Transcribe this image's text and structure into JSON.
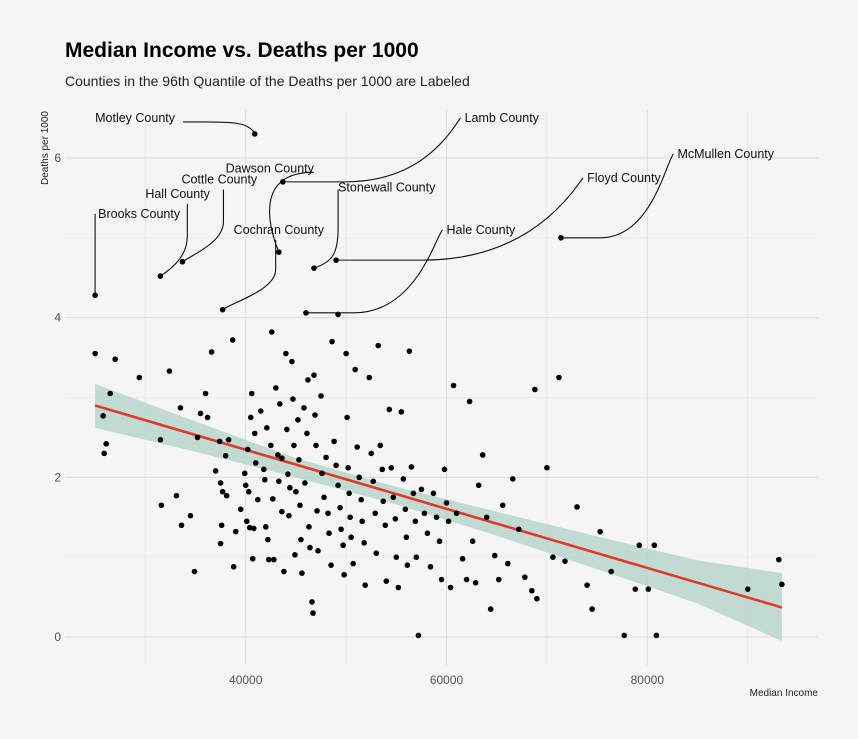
{
  "chart_data": {
    "type": "scatter",
    "title": "Median Income vs. Deaths per 1000",
    "subtitle": "Counties in the 96th Quantile of the Deaths per 1000 are Labeled",
    "xlabel": "Median Income",
    "ylabel": "Deaths per 1000",
    "xlim": [
      22000,
      97000
    ],
    "ylim": [
      -0.35,
      6.6
    ],
    "x_ticks": [
      40000,
      60000,
      80000
    ],
    "y_ticks": [
      0,
      2,
      4,
      6
    ],
    "grid": true,
    "colors": {
      "points": "#000000",
      "fit_line": "#e03a2a",
      "band": "#b7d6cc",
      "background": "#f5f5f5"
    },
    "points": [
      [
        25000,
        3.55
      ],
      [
        25800,
        2.77
      ],
      [
        26100,
        2.42
      ],
      [
        26500,
        3.05
      ],
      [
        27000,
        3.48
      ],
      [
        25900,
        2.3
      ],
      [
        29400,
        3.25
      ],
      [
        31500,
        2.47
      ],
      [
        31600,
        1.65
      ],
      [
        32400,
        3.33
      ],
      [
        33100,
        1.77
      ],
      [
        33600,
        1.4
      ],
      [
        33500,
        2.87
      ],
      [
        34500,
        1.52
      ],
      [
        34900,
        0.82
      ],
      [
        35200,
        2.5
      ],
      [
        35500,
        2.8
      ],
      [
        36200,
        2.75
      ],
      [
        36000,
        3.05
      ],
      [
        36600,
        3.57
      ],
      [
        37000,
        2.08
      ],
      [
        37400,
        2.45
      ],
      [
        37500,
        1.93
      ],
      [
        37700,
        1.82
      ],
      [
        37600,
        1.4
      ],
      [
        37500,
        1.17
      ],
      [
        38000,
        2.27
      ],
      [
        38300,
        2.47
      ],
      [
        38100,
        1.77
      ],
      [
        38700,
        3.72
      ],
      [
        39000,
        1.32
      ],
      [
        38800,
        0.88
      ],
      [
        39500,
        1.6
      ],
      [
        39900,
        2.05
      ],
      [
        40200,
        2.35
      ],
      [
        40000,
        1.9
      ],
      [
        40300,
        1.82
      ],
      [
        40100,
        1.45
      ],
      [
        40400,
        1.37
      ],
      [
        40600,
        3.05
      ],
      [
        40500,
        2.75
      ],
      [
        40900,
        2.55
      ],
      [
        41000,
        2.18
      ],
      [
        41200,
        1.72
      ],
      [
        40800,
        1.36
      ],
      [
        40700,
        0.98
      ],
      [
        41500,
        2.83
      ],
      [
        41800,
        2.1
      ],
      [
        41900,
        1.97
      ],
      [
        42100,
        2.62
      ],
      [
        42000,
        1.38
      ],
      [
        42300,
        0.97
      ],
      [
        42200,
        1.22
      ],
      [
        42600,
        3.82
      ],
      [
        42500,
        2.4
      ],
      [
        42700,
        1.73
      ],
      [
        42800,
        0.97
      ],
      [
        43000,
        3.12
      ],
      [
        43200,
        2.28
      ],
      [
        43300,
        1.95
      ],
      [
        43400,
        2.92
      ],
      [
        43600,
        2.24
      ],
      [
        43600,
        1.57
      ],
      [
        43800,
        0.82
      ],
      [
        44000,
        3.55
      ],
      [
        44100,
        2.6
      ],
      [
        44200,
        2.04
      ],
      [
        44300,
        1.52
      ],
      [
        44400,
        1.87
      ],
      [
        44600,
        3.45
      ],
      [
        44700,
        2.98
      ],
      [
        44800,
        2.4
      ],
      [
        44900,
        1.03
      ],
      [
        45000,
        1.82
      ],
      [
        45200,
        2.72
      ],
      [
        45300,
        2.22
      ],
      [
        45400,
        1.65
      ],
      [
        45500,
        1.22
      ],
      [
        45600,
        0.8
      ],
      [
        45800,
        2.87
      ],
      [
        45900,
        1.93
      ],
      [
        46200,
        3.22
      ],
      [
        46100,
        2.55
      ],
      [
        46300,
        1.38
      ],
      [
        46400,
        1.12
      ],
      [
        46600,
        0.44
      ],
      [
        46700,
        0.3
      ],
      [
        46800,
        3.28
      ],
      [
        46900,
        2.78
      ],
      [
        47000,
        2.4
      ],
      [
        47100,
        1.58
      ],
      [
        47200,
        1.08
      ],
      [
        47500,
        3.02
      ],
      [
        47600,
        2.05
      ],
      [
        47800,
        1.75
      ],
      [
        48000,
        2.25
      ],
      [
        48200,
        1.55
      ],
      [
        48300,
        1.3
      ],
      [
        48500,
        0.9
      ],
      [
        48600,
        3.7
      ],
      [
        48800,
        2.45
      ],
      [
        49000,
        2.15
      ],
      [
        49200,
        1.9
      ],
      [
        49400,
        1.62
      ],
      [
        49500,
        1.35
      ],
      [
        49700,
        1.15
      ],
      [
        49800,
        0.78
      ],
      [
        50000,
        3.55
      ],
      [
        50100,
        2.75
      ],
      [
        50200,
        2.12
      ],
      [
        50300,
        1.8
      ],
      [
        50400,
        1.5
      ],
      [
        50500,
        1.25
      ],
      [
        50700,
        0.92
      ],
      [
        50900,
        3.35
      ],
      [
        51100,
        2.38
      ],
      [
        51300,
        2.0
      ],
      [
        51500,
        1.72
      ],
      [
        51600,
        1.45
      ],
      [
        51800,
        1.18
      ],
      [
        51900,
        0.65
      ],
      [
        52300,
        3.25
      ],
      [
        52500,
        2.3
      ],
      [
        52700,
        1.95
      ],
      [
        52900,
        1.55
      ],
      [
        53000,
        1.05
      ],
      [
        53200,
        3.65
      ],
      [
        53400,
        2.4
      ],
      [
        53600,
        2.1
      ],
      [
        53700,
        1.7
      ],
      [
        53900,
        1.4
      ],
      [
        54000,
        0.7
      ],
      [
        54300,
        2.85
      ],
      [
        54500,
        2.12
      ],
      [
        54700,
        1.75
      ],
      [
        54900,
        1.48
      ],
      [
        55000,
        1.0
      ],
      [
        55200,
        0.62
      ],
      [
        55500,
        2.82
      ],
      [
        55700,
        1.98
      ],
      [
        55900,
        1.6
      ],
      [
        56000,
        1.25
      ],
      [
        56100,
        0.9
      ],
      [
        56300,
        3.58
      ],
      [
        56500,
        2.13
      ],
      [
        56700,
        1.8
      ],
      [
        56900,
        1.45
      ],
      [
        57000,
        1.0
      ],
      [
        57200,
        0.02
      ],
      [
        57500,
        1.85
      ],
      [
        57800,
        1.55
      ],
      [
        58100,
        1.3
      ],
      [
        58400,
        0.88
      ],
      [
        58700,
        1.8
      ],
      [
        59000,
        1.5
      ],
      [
        59300,
        1.2
      ],
      [
        59500,
        0.72
      ],
      [
        59800,
        2.1
      ],
      [
        60000,
        1.68
      ],
      [
        60200,
        1.45
      ],
      [
        60400,
        0.62
      ],
      [
        60700,
        3.15
      ],
      [
        61000,
        1.55
      ],
      [
        61600,
        0.98
      ],
      [
        62000,
        0.72
      ],
      [
        62300,
        2.95
      ],
      [
        62600,
        1.2
      ],
      [
        62900,
        0.68
      ],
      [
        63200,
        1.9
      ],
      [
        63600,
        2.28
      ],
      [
        64000,
        1.5
      ],
      [
        64400,
        0.35
      ],
      [
        64800,
        1.02
      ],
      [
        65200,
        0.72
      ],
      [
        65600,
        1.65
      ],
      [
        66100,
        0.92
      ],
      [
        66600,
        1.98
      ],
      [
        67200,
        1.35
      ],
      [
        67800,
        0.75
      ],
      [
        68500,
        0.58
      ],
      [
        69000,
        0.48
      ],
      [
        68800,
        3.1
      ],
      [
        70000,
        2.12
      ],
      [
        70600,
        1.0
      ],
      [
        71200,
        3.25
      ],
      [
        71800,
        0.95
      ],
      [
        73000,
        1.63
      ],
      [
        74000,
        0.65
      ],
      [
        74500,
        0.35
      ],
      [
        75300,
        1.32
      ],
      [
        76400,
        0.82
      ],
      [
        77700,
        0.02
      ],
      [
        78800,
        0.6
      ],
      [
        79200,
        1.15
      ],
      [
        80100,
        0.6
      ],
      [
        80700,
        1.15
      ],
      [
        80900,
        0.02
      ],
      [
        90000,
        0.6
      ],
      [
        93100,
        0.97
      ],
      [
        93400,
        0.66
      ]
    ],
    "labeled": [
      {
        "label": "Motley County",
        "x": 40900,
        "y": 6.3,
        "lx": 25000,
        "ly": 6.45,
        "anchor": "start"
      },
      {
        "label": "Lamb County",
        "x": 43700,
        "y": 5.7,
        "lx": 61800,
        "ly": 6.45,
        "anchor": "start"
      },
      {
        "label": "Dawson County",
        "x": 43300,
        "y": 4.82,
        "lx": 38000,
        "ly": 5.82,
        "anchor": "start"
      },
      {
        "label": "McMullen County",
        "x": 71400,
        "y": 5.0,
        "lx": 83000,
        "ly": 6.0,
        "anchor": "start"
      },
      {
        "label": "Cottle County",
        "x": 33700,
        "y": 4.7,
        "lx": 33600,
        "ly": 5.68,
        "anchor": "start"
      },
      {
        "label": "Floyd County",
        "x": 49000,
        "y": 4.72,
        "lx": 74000,
        "ly": 5.7,
        "anchor": "start"
      },
      {
        "label": "Stonewall County",
        "x": 46800,
        "y": 4.62,
        "lx": 49200,
        "ly": 5.58,
        "anchor": "start"
      },
      {
        "label": "Hall County",
        "x": 31500,
        "y": 4.52,
        "lx": 30000,
        "ly": 5.5,
        "anchor": "start"
      },
      {
        "label": "Brooks County",
        "x": 25000,
        "y": 4.28,
        "lx": 25300,
        "ly": 5.25,
        "anchor": "start"
      },
      {
        "label": "Cochran County",
        "x": 37700,
        "y": 4.1,
        "lx": 38800,
        "ly": 5.05,
        "anchor": "start"
      },
      {
        "label": "Hale County",
        "x": 46000,
        "y": 4.06,
        "lx": 60000,
        "ly": 5.05,
        "anchor": "start"
      },
      {
        "label": "",
        "x": 49200,
        "y": 4.04
      }
    ],
    "fit": {
      "x": [
        25000,
        93400
      ],
      "y": [
        2.9,
        0.37
      ]
    },
    "band": {
      "x": [
        25000,
        35000,
        45000,
        55000,
        65000,
        75000,
        85000,
        93400
      ],
      "lower": [
        2.62,
        2.32,
        2.0,
        1.66,
        1.27,
        0.85,
        0.42,
        -0.05
      ],
      "upper": [
        3.17,
        2.7,
        2.24,
        1.88,
        1.57,
        1.26,
        0.96,
        0.8
      ]
    }
  }
}
